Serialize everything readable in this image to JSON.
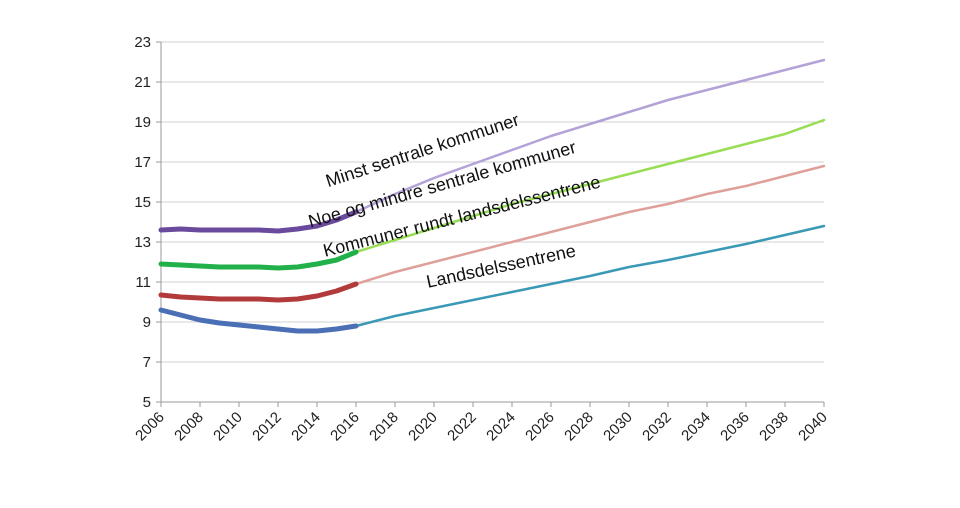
{
  "chart_data": {
    "type": "line",
    "title": "",
    "xlabel": "",
    "ylabel": "",
    "xlim": [
      2006,
      2040
    ],
    "ylim": [
      5,
      23
    ],
    "yticks": [
      5,
      7,
      9,
      11,
      13,
      15,
      17,
      19,
      21,
      23
    ],
    "xticks": [
      2006,
      2008,
      2010,
      2012,
      2014,
      2016,
      2018,
      2020,
      2022,
      2024,
      2026,
      2028,
      2030,
      2032,
      2034,
      2036,
      2038,
      2040
    ],
    "grid": true,
    "legend": "none",
    "historical_end": 2016,
    "series": [
      {
        "name": "Minst sentrale kommuner",
        "color_historical": "#6a4a9c",
        "color_projection": "#b3a2d8",
        "x": [
          2006,
          2007,
          2008,
          2009,
          2010,
          2011,
          2012,
          2013,
          2014,
          2015,
          2016,
          2018,
          2020,
          2022,
          2024,
          2026,
          2028,
          2030,
          2032,
          2034,
          2036,
          2038,
          2040
        ],
        "values": [
          13.6,
          13.65,
          13.6,
          13.6,
          13.6,
          13.6,
          13.55,
          13.65,
          13.8,
          14.1,
          14.5,
          15.4,
          16.2,
          16.9,
          17.6,
          18.3,
          18.9,
          19.5,
          20.1,
          20.6,
          21.1,
          21.6,
          22.1
        ]
      },
      {
        "name": "Noe og mindre sentrale kommuner",
        "color_historical": "#22b04a",
        "color_projection": "#99dd55",
        "x": [
          2006,
          2007,
          2008,
          2009,
          2010,
          2011,
          2012,
          2013,
          2014,
          2015,
          2016,
          2018,
          2020,
          2022,
          2024,
          2026,
          2028,
          2030,
          2032,
          2034,
          2036,
          2038,
          2040
        ],
        "values": [
          11.9,
          11.85,
          11.8,
          11.75,
          11.75,
          11.75,
          11.7,
          11.75,
          11.9,
          12.1,
          12.5,
          13.1,
          13.7,
          14.3,
          14.9,
          15.4,
          15.9,
          16.4,
          16.9,
          17.4,
          17.9,
          18.4,
          19.1
        ]
      },
      {
        "name": "Kommuner rundt landsdelssentrene",
        "color_historical": "#b23a3a",
        "color_projection": "#e0a09a",
        "x": [
          2006,
          2007,
          2008,
          2009,
          2010,
          2011,
          2012,
          2013,
          2014,
          2015,
          2016,
          2018,
          2020,
          2022,
          2024,
          2026,
          2028,
          2030,
          2032,
          2034,
          2036,
          2038,
          2040
        ],
        "values": [
          10.35,
          10.25,
          10.2,
          10.15,
          10.15,
          10.15,
          10.1,
          10.15,
          10.3,
          10.55,
          10.9,
          11.5,
          12.0,
          12.5,
          13.0,
          13.5,
          14.0,
          14.5,
          14.9,
          15.4,
          15.8,
          16.3,
          16.8
        ]
      },
      {
        "name": "Landsdelssentrene",
        "color_historical": "#4a6fb5",
        "color_projection": "#3a99b5",
        "x": [
          2006,
          2007,
          2008,
          2009,
          2010,
          2011,
          2012,
          2013,
          2014,
          2015,
          2016,
          2018,
          2020,
          2022,
          2024,
          2026,
          2028,
          2030,
          2032,
          2034,
          2036,
          2038,
          2040
        ],
        "values": [
          9.6,
          9.35,
          9.1,
          8.95,
          8.85,
          8.75,
          8.65,
          8.55,
          8.55,
          8.65,
          8.8,
          9.3,
          9.7,
          10.1,
          10.5,
          10.9,
          11.3,
          11.75,
          12.1,
          12.5,
          12.9,
          13.35,
          13.8
        ]
      }
    ],
    "labels": [
      {
        "series": "Minst sentrale kommuner",
        "text": "Minst sentrale kommuner",
        "at_x": 2019.5,
        "at_y": 17.3
      },
      {
        "series": "Noe og mindre sentrale kommuner",
        "text": "Noe og mindre sentrale kommuner",
        "at_x": 2020.5,
        "at_y": 15.6
      },
      {
        "series": "Kommuner rundt landsdelssentrene",
        "text": "Kommuner rundt landsdelssentrene",
        "at_x": 2021.5,
        "at_y": 14.0
      },
      {
        "series": "Landsdelssentrene",
        "text": "Landsdelssentrene",
        "at_x": 2023.5,
        "at_y": 11.5
      }
    ]
  }
}
